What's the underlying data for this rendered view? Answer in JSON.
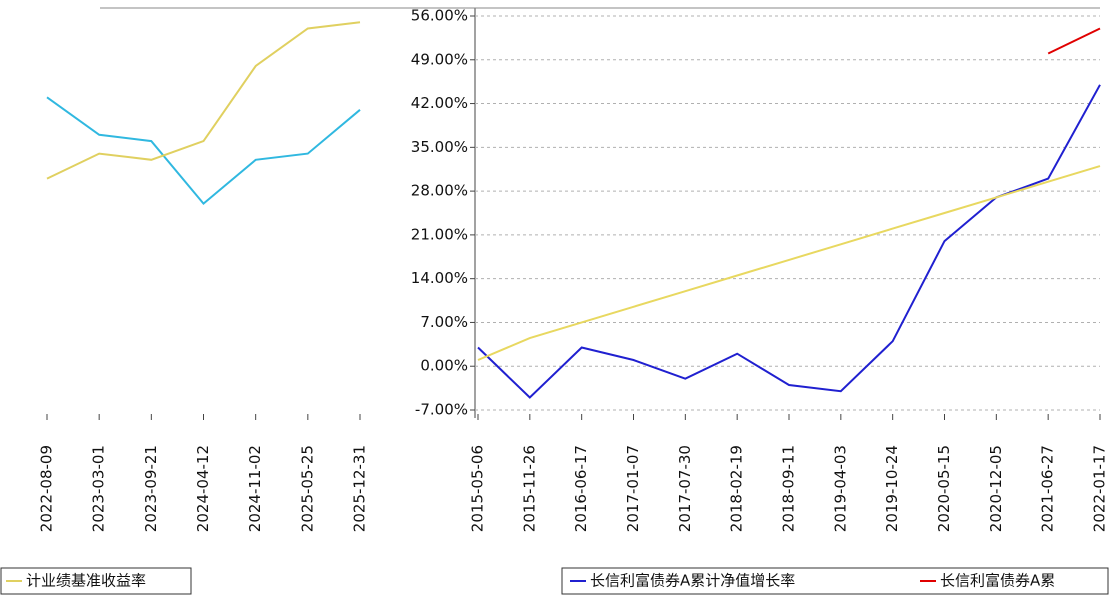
{
  "chart_data": [
    {
      "type": "line",
      "categories": [
        "2022-08-09",
        "2023-03-01",
        "2023-09-21",
        "2024-04-12",
        "2024-11-02",
        "2025-05-25",
        "2025-12-31"
      ],
      "series": [
        {
          "color": "#30b8e0",
          "values": [
            43,
            37,
            36,
            26,
            33,
            34,
            41
          ]
        },
        {
          "name": "计业绩基准收益率",
          "color": "#e0d060",
          "values": [
            30,
            34,
            33,
            36,
            48,
            54,
            55
          ]
        }
      ],
      "ylim": [
        -7,
        56
      ],
      "grid": true
    },
    {
      "type": "line",
      "categories": [
        "2015-05-06",
        "2015-11-26",
        "2016-06-17",
        "2017-01-07",
        "2017-07-30",
        "2018-02-19",
        "2018-09-11",
        "2019-04-03",
        "2019-10-24",
        "2020-05-15",
        "2020-12-05",
        "2021-06-27",
        "2022-01-17"
      ],
      "series": [
        {
          "name": "长信利富债券A累计净值增长率",
          "color": "#2020d0",
          "values": [
            3,
            -5,
            3,
            1,
            -2,
            2,
            -3,
            -4,
            4,
            20,
            27,
            30,
            45
          ]
        },
        {
          "color": "#e8d860",
          "values": [
            1,
            4.5,
            7,
            9.5,
            12,
            14.5,
            17,
            19.5,
            22,
            24.5,
            27,
            29.5,
            32
          ]
        },
        {
          "name": "长信利富债券A累",
          "color": "#e00000",
          "values": [
            null,
            null,
            null,
            null,
            null,
            null,
            null,
            null,
            null,
            null,
            null,
            50,
            54
          ]
        }
      ],
      "ylim": [
        -7,
        56
      ],
      "yticks": [
        {
          "value": 56,
          "label": "56.00%"
        },
        {
          "value": 49,
          "label": "49.00%"
        },
        {
          "value": 42,
          "label": "42.00%"
        },
        {
          "value": 35,
          "label": "35.00%"
        },
        {
          "value": 28,
          "label": "28.00%"
        },
        {
          "value": 21,
          "label": "21.00%"
        },
        {
          "value": 14,
          "label": "14.00%"
        },
        {
          "value": 7,
          "label": "7.00%"
        },
        {
          "value": 0,
          "label": "0.00%"
        },
        {
          "value": -7,
          "label": "-7.00%"
        }
      ],
      "grid": true
    }
  ]
}
